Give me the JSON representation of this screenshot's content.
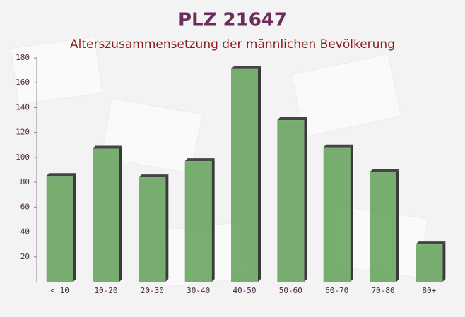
{
  "chart_data": {
    "type": "bar",
    "title": "PLZ 21647",
    "subtitle": "Alterszusammensetzung der männlichen Bevölkerung",
    "categories": [
      "< 10",
      "10-20",
      "20-30",
      "30-40",
      "40-50",
      "50-60",
      "60-70",
      "70-80",
      "80+"
    ],
    "values": [
      85,
      107,
      84,
      97,
      171,
      130,
      108,
      88,
      30
    ],
    "color": "#6aa562",
    "ylim": [
      0,
      180
    ],
    "yticks": [
      20,
      40,
      60,
      80,
      100,
      120,
      140,
      160,
      180
    ]
  }
}
